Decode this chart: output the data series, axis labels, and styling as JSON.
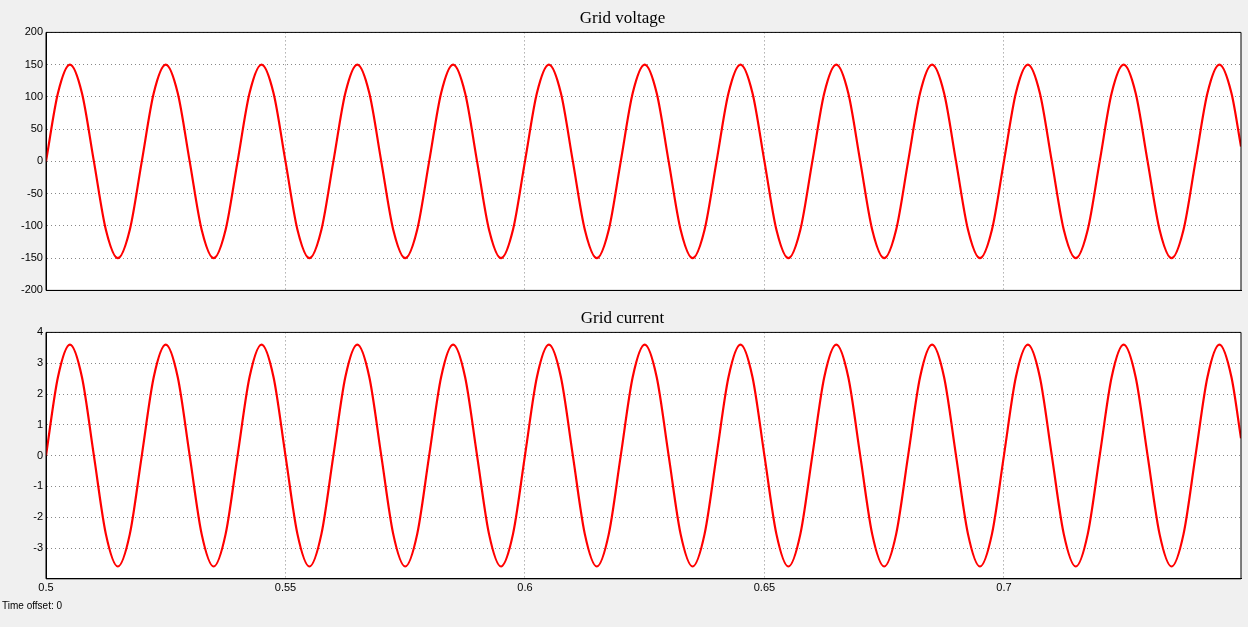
{
  "chart_data": [
    {
      "type": "line",
      "title": "Grid voltage",
      "xlim": [
        0.5,
        0.7495
      ],
      "xticks": [
        0.5,
        0.55,
        0.6,
        0.65,
        0.7
      ],
      "ylim": [
        -200,
        200
      ],
      "yticks": [
        -200,
        -150,
        -100,
        -50,
        0,
        50,
        100,
        150,
        200
      ],
      "grid": true,
      "tick_labels": "y",
      "x": [
        0.5,
        0.5025,
        0.505,
        0.5075,
        0.51,
        0.5125,
        0.515,
        0.5175,
        0.52,
        0.5225,
        0.525,
        0.5275,
        0.53,
        0.5325,
        0.535,
        0.5375,
        0.54,
        0.5425,
        0.545,
        0.5475,
        0.55,
        0.5525,
        0.555,
        0.5575,
        0.56,
        0.5625,
        0.565,
        0.5675,
        0.57,
        0.5725,
        0.575,
        0.5775,
        0.58,
        0.5825,
        0.585,
        0.5875,
        0.59,
        0.5925,
        0.595,
        0.5975,
        0.6,
        0.6025,
        0.605,
        0.6075,
        0.61,
        0.6125,
        0.615,
        0.6175,
        0.62,
        0.6225,
        0.625,
        0.6275,
        0.63,
        0.6325,
        0.635,
        0.6375,
        0.64,
        0.6425,
        0.645,
        0.6475,
        0.65,
        0.6525,
        0.655,
        0.6575,
        0.66,
        0.6625,
        0.665,
        0.6675,
        0.67,
        0.6725,
        0.675,
        0.6775,
        0.68,
        0.6825,
        0.685,
        0.6875,
        0.69,
        0.6925,
        0.695,
        0.6975,
        0.7,
        0.7025,
        0.705,
        0.7075,
        0.71,
        0.7125,
        0.715,
        0.7175,
        0.72,
        0.7225,
        0.725,
        0.7275,
        0.73,
        0.7325,
        0.735,
        0.7375,
        0.74,
        0.7425,
        0.745,
        0.7475,
        0.7495
      ],
      "series": [
        {
          "color": "#ff0000",
          "values": [
            0,
            106,
            150,
            106,
            0,
            -106,
            -150,
            -106,
            0,
            106,
            150,
            106,
            0,
            -106,
            -150,
            -106,
            0,
            106,
            150,
            106,
            0,
            -106,
            -150,
            -106,
            0,
            106,
            150,
            106,
            0,
            -106,
            -150,
            -106,
            0,
            106,
            150,
            106,
            0,
            -106,
            -150,
            -106,
            0,
            106,
            150,
            106,
            0,
            -106,
            -150,
            -106,
            0,
            106,
            150,
            106,
            0,
            -106,
            -150,
            -106,
            0,
            106,
            150,
            106,
            0,
            -106,
            -150,
            -106,
            0,
            106,
            150,
            106,
            0,
            -106,
            -150,
            -106,
            0,
            106,
            150,
            106,
            0,
            -106,
            -150,
            -106,
            0,
            106,
            150,
            106,
            0,
            -106,
            -150,
            -106,
            0,
            106,
            150,
            106,
            0,
            -106,
            -150,
            -106,
            0,
            106,
            150,
            106,
            23
          ]
        }
      ]
    },
    {
      "type": "line",
      "title": "Grid current",
      "xlim": [
        0.5,
        0.7495
      ],
      "xticks": [
        0.5,
        0.55,
        0.6,
        0.65,
        0.7
      ],
      "ylim": [
        -4,
        4
      ],
      "yticks": [
        -3,
        -2,
        -1,
        0,
        1,
        2,
        3,
        4
      ],
      "grid": true,
      "annotations": [
        "Time offset:  0"
      ],
      "x": [
        0.5,
        0.5025,
        0.505,
        0.5075,
        0.51,
        0.5125,
        0.515,
        0.5175,
        0.52,
        0.5225,
        0.525,
        0.5275,
        0.53,
        0.5325,
        0.535,
        0.5375,
        0.54,
        0.5425,
        0.545,
        0.5475,
        0.55,
        0.5525,
        0.555,
        0.5575,
        0.56,
        0.5625,
        0.565,
        0.5675,
        0.57,
        0.5725,
        0.575,
        0.5775,
        0.58,
        0.5825,
        0.585,
        0.5875,
        0.59,
        0.5925,
        0.595,
        0.5975,
        0.6,
        0.6025,
        0.605,
        0.6075,
        0.61,
        0.6125,
        0.615,
        0.6175,
        0.62,
        0.6225,
        0.625,
        0.6275,
        0.63,
        0.6325,
        0.635,
        0.6375,
        0.64,
        0.6425,
        0.645,
        0.6475,
        0.65,
        0.6525,
        0.655,
        0.6575,
        0.66,
        0.6625,
        0.665,
        0.6675,
        0.67,
        0.6725,
        0.675,
        0.6775,
        0.68,
        0.6825,
        0.685,
        0.6875,
        0.69,
        0.6925,
        0.695,
        0.6975,
        0.7,
        0.7025,
        0.705,
        0.7075,
        0.71,
        0.7125,
        0.715,
        0.7175,
        0.72,
        0.7225,
        0.725,
        0.7275,
        0.73,
        0.7325,
        0.735,
        0.7375,
        0.74,
        0.7425,
        0.745,
        0.7475,
        0.7495
      ],
      "series": [
        {
          "color": "#ff0000",
          "values": [
            0,
            2.55,
            3.6,
            2.55,
            0,
            -2.55,
            -3.6,
            -2.55,
            0,
            2.55,
            3.6,
            2.55,
            0,
            -2.55,
            -3.6,
            -2.55,
            0,
            2.55,
            3.6,
            2.55,
            0,
            -2.55,
            -3.6,
            -2.55,
            0,
            2.55,
            3.6,
            2.55,
            0,
            -2.55,
            -3.6,
            -2.55,
            0,
            2.55,
            3.6,
            2.55,
            0,
            -2.55,
            -3.6,
            -2.55,
            0,
            2.55,
            3.6,
            2.55,
            0,
            -2.55,
            -3.6,
            -2.55,
            0,
            2.55,
            3.6,
            2.55,
            0,
            -2.55,
            -3.6,
            -2.55,
            0,
            2.55,
            3.6,
            2.55,
            0,
            -2.55,
            -3.6,
            -2.55,
            0,
            2.55,
            3.6,
            2.55,
            0,
            -2.55,
            -3.6,
            -2.55,
            0,
            2.55,
            3.6,
            2.55,
            0,
            -2.55,
            -3.6,
            -2.55,
            0,
            2.55,
            3.6,
            2.55,
            0,
            -2.55,
            -3.6,
            -2.55,
            0,
            2.55,
            3.6,
            2.55,
            0,
            -2.55,
            -3.6,
            -2.55,
            0,
            2.55,
            3.6,
            2.55,
            0.56
          ]
        }
      ]
    }
  ]
}
